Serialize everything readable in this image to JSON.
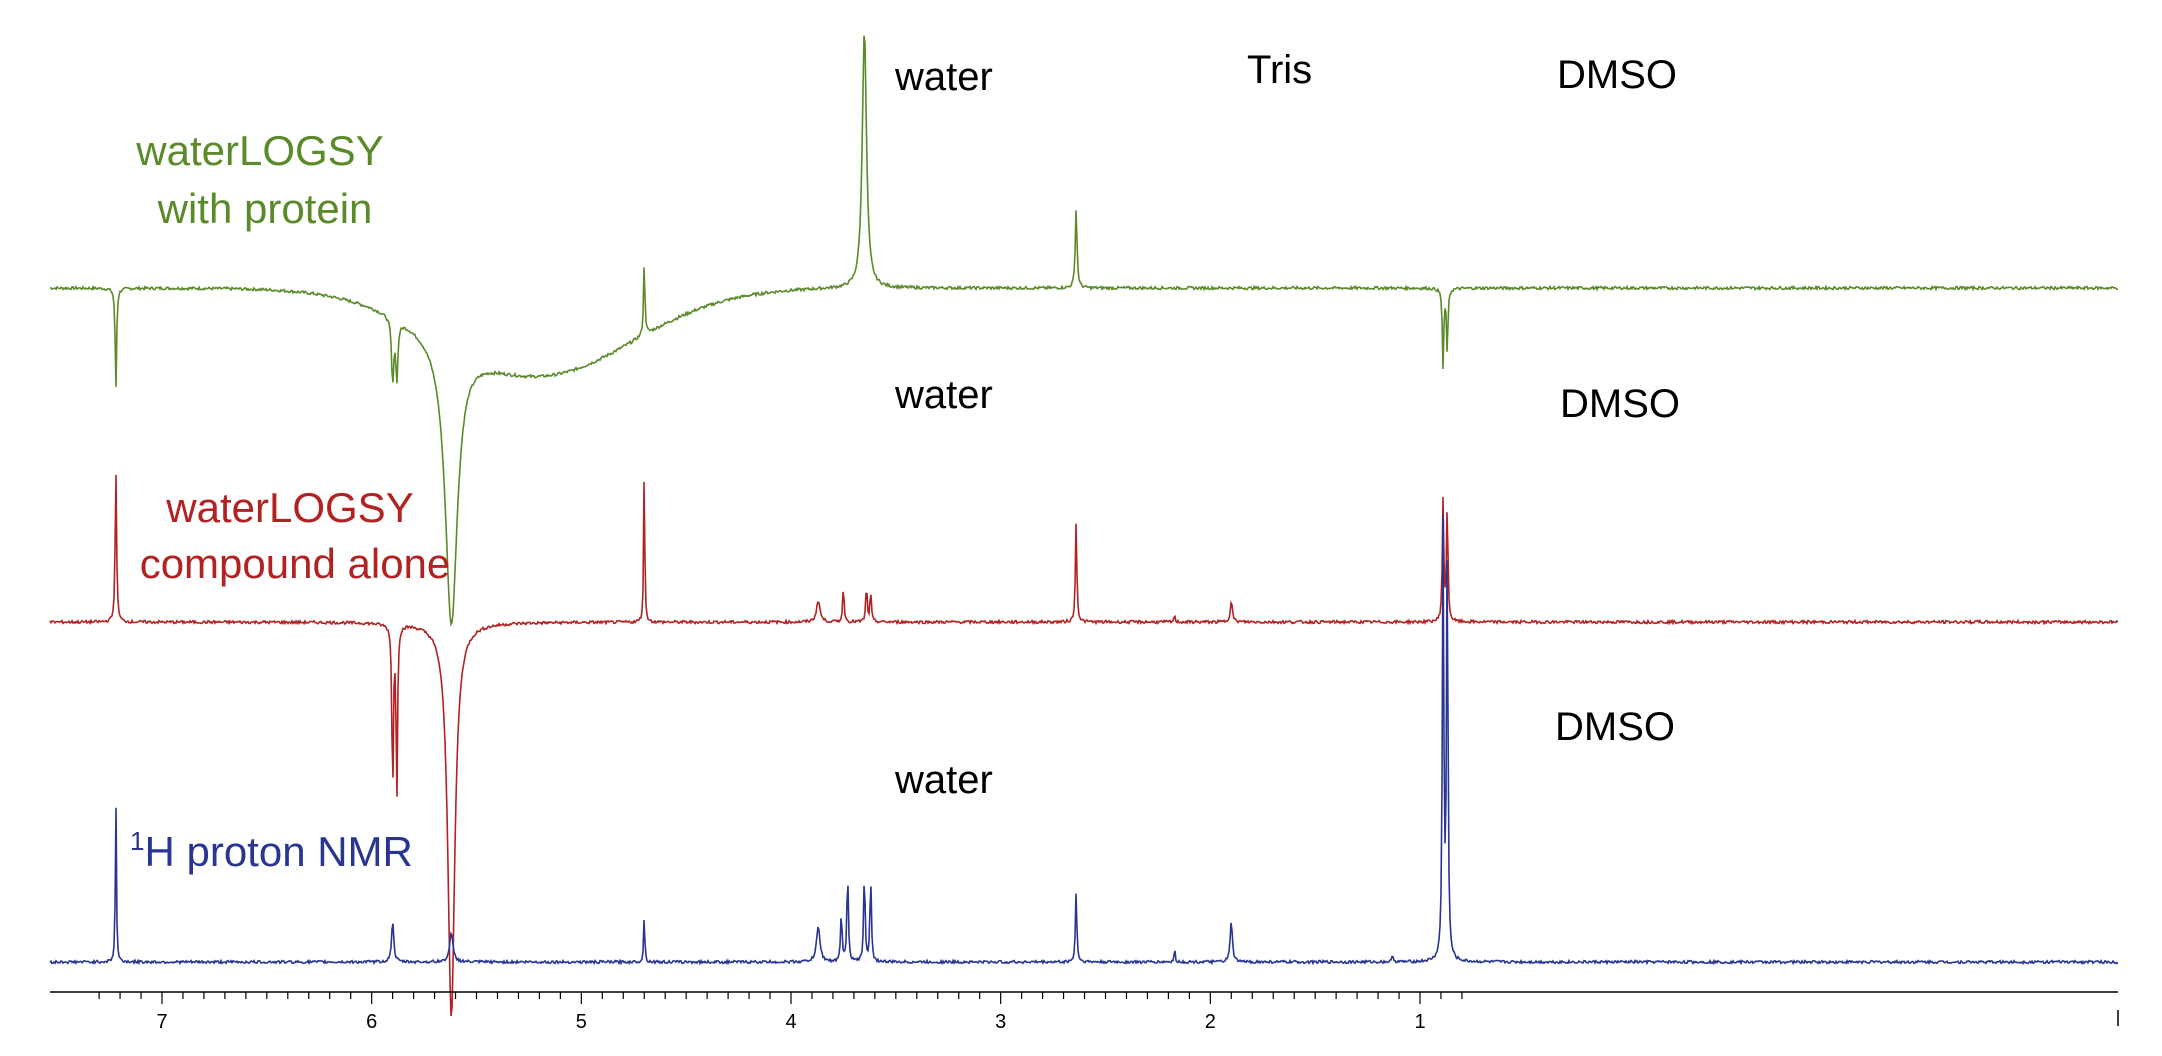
{
  "chart_data": {
    "type": "line",
    "title": "",
    "xlabel": "",
    "ylabel": "",
    "x_axis": {
      "range": [
        7.35,
        0.78
      ],
      "reversed": true,
      "tick_values": [
        7,
        6,
        5,
        4,
        3,
        2,
        1
      ],
      "tick_labels": [
        "7",
        "6",
        "5",
        "4",
        "3",
        "2",
        "1"
      ]
    },
    "grid": false,
    "legend": "none",
    "series": [
      {
        "name": "waterLOGSY with protein",
        "label_line1": "waterLOGSY",
        "label_line2": "with protein",
        "color": "#5b8a2a",
        "baseline": 0,
        "peaks": [
          {
            "ppm": 7.22,
            "height": -1.4,
            "width": 0.004
          },
          {
            "ppm": 5.9,
            "height": -0.9,
            "width": 0.006
          },
          {
            "ppm": 5.88,
            "height": -0.8,
            "width": 0.006
          },
          {
            "ppm": 5.62,
            "height": -3.9,
            "width": 0.035
          },
          {
            "ppm": 4.7,
            "height": 1.0,
            "width": 0.004
          },
          {
            "ppm": 3.65,
            "height": 3.6,
            "width": 0.012
          },
          {
            "ppm": 2.64,
            "height": 1.1,
            "width": 0.005
          },
          {
            "ppm": 0.89,
            "height": -1.1,
            "width": 0.004
          },
          {
            "ppm": 0.87,
            "height": -0.9,
            "width": 0.004
          }
        ],
        "baseline_dip": {
          "ppm": 5.2,
          "depth": -1.2,
          "width": 0.45
        }
      },
      {
        "name": "waterLOGSY compound alone",
        "label_line1": "waterLOGSY",
        "label_line2": "compound alone",
        "color": "#b22222",
        "baseline": 0,
        "peaks": [
          {
            "ppm": 7.22,
            "height": 2.1,
            "width": 0.004
          },
          {
            "ppm": 5.9,
            "height": -2.4,
            "width": 0.004
          },
          {
            "ppm": 5.88,
            "height": -2.4,
            "width": 0.004
          },
          {
            "ppm": 5.62,
            "height": -5.5,
            "width": 0.02
          },
          {
            "ppm": 4.7,
            "height": 2.2,
            "width": 0.003
          },
          {
            "ppm": 3.87,
            "height": 0.3,
            "width": 0.01
          },
          {
            "ppm": 3.75,
            "height": 0.5,
            "width": 0.004
          },
          {
            "ppm": 3.64,
            "height": 0.5,
            "width": 0.004
          },
          {
            "ppm": 3.62,
            "height": 0.4,
            "width": 0.004
          },
          {
            "ppm": 2.64,
            "height": 1.4,
            "width": 0.004
          },
          {
            "ppm": 2.17,
            "height": 0.1,
            "width": 0.003
          },
          {
            "ppm": 1.9,
            "height": 0.3,
            "width": 0.006
          },
          {
            "ppm": 0.89,
            "height": 1.7,
            "width": 0.004
          },
          {
            "ppm": 0.87,
            "height": 1.6,
            "width": 0.004
          }
        ]
      },
      {
        "name": "1H proton NMR",
        "label_superscript": "1",
        "label_text": "H proton NMR",
        "color": "#283593",
        "baseline": 0,
        "peaks": [
          {
            "ppm": 7.22,
            "height": 2.3,
            "width": 0.003
          },
          {
            "ppm": 5.9,
            "height": 0.6,
            "width": 0.006
          },
          {
            "ppm": 5.62,
            "height": 0.4,
            "width": 0.01
          },
          {
            "ppm": 4.7,
            "height": 0.7,
            "width": 0.003
          },
          {
            "ppm": 3.87,
            "height": 0.5,
            "width": 0.01
          },
          {
            "ppm": 3.76,
            "height": 0.7,
            "width": 0.004
          },
          {
            "ppm": 3.73,
            "height": 1.3,
            "width": 0.004
          },
          {
            "ppm": 3.65,
            "height": 1.3,
            "width": 0.004
          },
          {
            "ppm": 3.62,
            "height": 1.2,
            "width": 0.004
          },
          {
            "ppm": 2.64,
            "height": 1.0,
            "width": 0.004
          },
          {
            "ppm": 2.17,
            "height": 0.2,
            "width": 0.003
          },
          {
            "ppm": 1.9,
            "height": 0.6,
            "width": 0.006
          },
          {
            "ppm": 1.13,
            "height": 0.1,
            "width": 0.004
          },
          {
            "ppm": 0.89,
            "height": 6.2,
            "width": 0.004
          },
          {
            "ppm": 0.87,
            "height": 6.0,
            "width": 0.004
          }
        ]
      }
    ],
    "annotations": [
      {
        "text": "water",
        "series": "waterLOGSY with protein"
      },
      {
        "text": "Tris",
        "series": "waterLOGSY with protein"
      },
      {
        "text": "DMSO",
        "series": "waterLOGSY with protein"
      },
      {
        "text": "water",
        "series": "waterLOGSY compound alone"
      },
      {
        "text": "DMSO",
        "series": "waterLOGSY compound alone"
      },
      {
        "text": "DMSO",
        "series": "1H proton NMR"
      },
      {
        "text": "water",
        "series": "1H proton NMR"
      }
    ]
  }
}
